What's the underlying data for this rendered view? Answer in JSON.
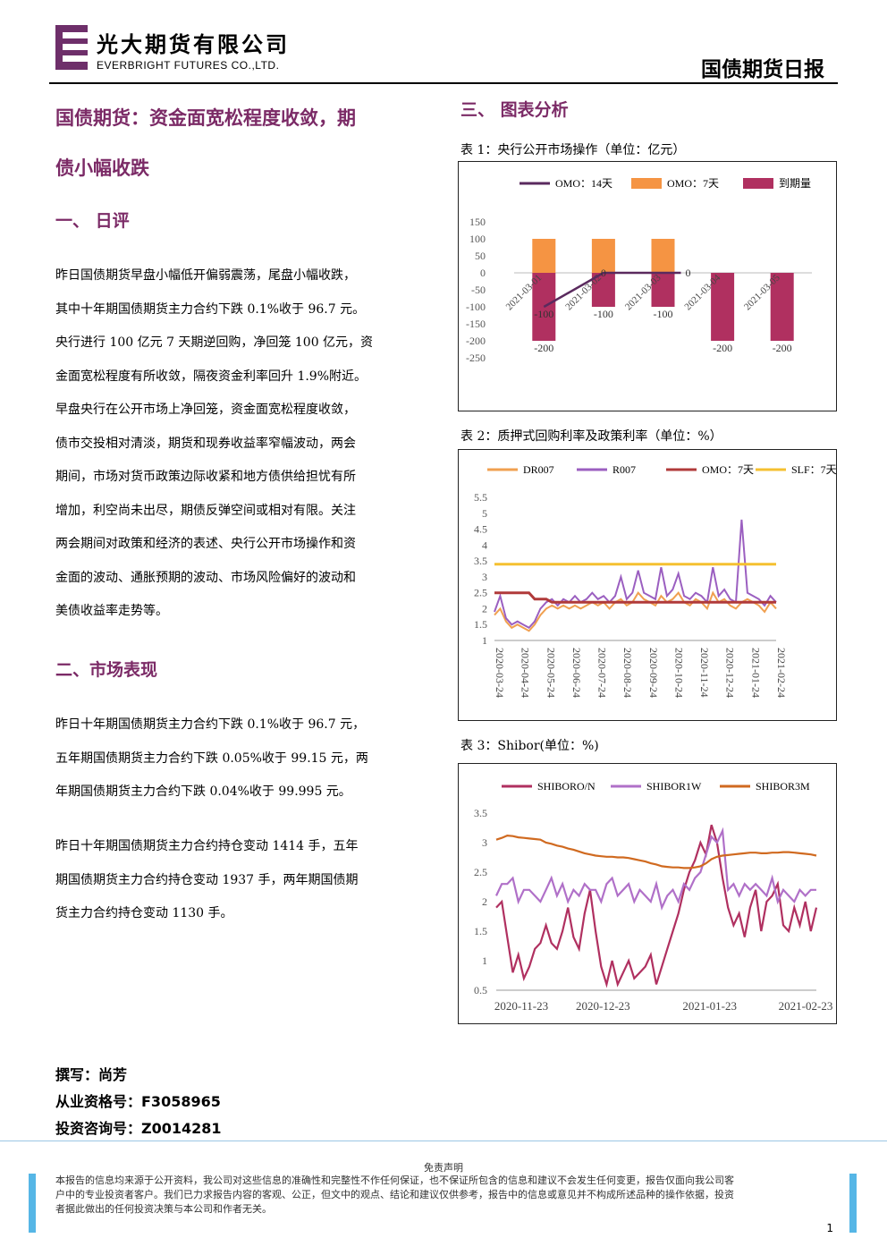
{
  "header": {
    "company_cn": "光大期货有限公司",
    "company_en": "EVERBRIGHT FUTURES CO.,LTD.",
    "report_title": "国债期货日报",
    "logo_color": "#7b2a66"
  },
  "main_title_line1": "国债期货：资金面宽松程度收敛，期",
  "main_title_line2": "债小幅收跌",
  "section1": {
    "heading": "一、  日评",
    "paragraph_lines": [
      "昨日国债期货早盘小幅低开偏弱震荡，尾盘小幅收跌，",
      "其中十年期国债期货主力合约下跌 0.1%收于 96.7 元。",
      "央行进行 100 亿元 7 天期逆回购，净回笼 100 亿元，资",
      "金面宽松程度有所收敛，隔夜资金利率回升 1.9%附近。",
      "早盘央行在公开市场上净回笼，资金面宽松程度收敛，",
      "债市交投相对清淡，期货和现券收益率窄幅波动，两会",
      "期间，市场对货币政策边际收紧和地方债供给担忧有所",
      "增加，利空尚未出尽，期债反弹空间或相对有限。关注",
      "两会期间对政策和经济的表述、央行公开市场操作和资",
      "金面的波动、通胀预期的波动、市场风险偏好的波动和",
      "美债收益率走势等。"
    ]
  },
  "section2": {
    "heading": "二、市场表现",
    "para1_lines": [
      "昨日十年期国债期货主力合约下跌 0.1%收于 96.7 元，",
      "五年期国债期货主力合约下跌 0.05%收于 99.15 元，两",
      "年期国债期货主力合约下跌 0.04%收于 99.995 元。"
    ],
    "para2_lines": [
      "昨日十年期国债期货主力合约持仓变动 1414 手，五年",
      "期国债期货主力合约持仓变动 1937 手，两年期国债期",
      "货主力合约持仓变动 1130 手。"
    ]
  },
  "section3": {
    "heading": "三、  图表分析"
  },
  "author": {
    "writer": "撰写：尚芳",
    "qualification": "从业资格号：F3058965",
    "consulting": "投资咨询号：Z0014281"
  },
  "footer": {
    "disclaimer_title": "免责声明",
    "disclaimer_lines": [
      "本报告的信息均来源于公开资料，我公司对这些信息的准确性和完整性不作任何保证，也不保证所包含的信息和建议不会发生任何变更，报告仅面向我公司客",
      "户中的专业投资者客户。我们已力求报告内容的客观、公正，但文中的观点、结论和建议仅供参考，报告中的信息或意见并不构成所述品种的操作依据，投资",
      "者据此做出的任何投资决策与本公司和作者无关。"
    ],
    "page_number": "1"
  },
  "chart_data": [
    {
      "caption": "表 1：央行公开市场操作（单位：亿元）",
      "type": "bar",
      "categories": [
        "2021-03-01",
        "2021-03-02",
        "2021-03-03",
        "2021-03-04",
        "2021-03-05"
      ],
      "series": [
        {
          "name": "OMO：14天",
          "kind": "line",
          "color": "#5a2a5e",
          "values": [
            -100,
            0,
            0,
            null,
            null
          ]
        },
        {
          "name": "OMO：7天",
          "kind": "bar",
          "color": "#f59443",
          "values": [
            100,
            100,
            100,
            null,
            null
          ]
        },
        {
          "name": "到期量",
          "kind": "bar",
          "color": "#b03060",
          "values": [
            -200,
            -100,
            -100,
            -200,
            -200
          ]
        }
      ],
      "data_labels": [
        "-200",
        "-100",
        "0",
        "-100",
        "0",
        "-100",
        "-200",
        "-200"
      ],
      "yticks": [
        "150",
        "100",
        "50",
        "0",
        "-50",
        "-100",
        "-150",
        "-200",
        "-250"
      ],
      "ylim": [
        -250,
        150
      ],
      "legend": "top"
    },
    {
      "caption": "表 2：质押式回购利率及政策利率（单位：%）",
      "type": "line",
      "xticks": [
        "2020-03-24",
        "2020-04-24",
        "2020-05-24",
        "2020-06-24",
        "2020-07-24",
        "2020-08-24",
        "2020-09-24",
        "2020-10-24",
        "2020-11-24",
        "2020-12-24",
        "2021-01-24",
        "2021-02-24"
      ],
      "yticks": [
        "5.5",
        "5",
        "4.5",
        "4",
        "3.5",
        "3",
        "2.5",
        "2",
        "1.5",
        "1"
      ],
      "ylim": [
        1,
        5.5
      ],
      "series": [
        {
          "name": "DR007",
          "color": "#f0a050",
          "values": [
            1.8,
            2.0,
            1.6,
            1.4,
            1.5,
            1.4,
            1.3,
            1.5,
            1.8,
            2.0,
            2.1,
            2.0,
            2.1,
            2.0,
            2.1,
            2.0,
            2.1,
            2.2,
            2.1,
            2.2,
            2.0,
            2.2,
            2.3,
            2.1,
            2.2,
            2.5,
            2.3,
            2.2,
            2.1,
            2.4,
            2.2,
            2.3,
            2.5,
            2.2,
            2.1,
            2.3,
            2.2,
            2.0,
            2.5,
            2.2,
            2.3,
            2.1,
            2.0,
            2.2,
            2.3,
            2.2,
            2.1,
            1.9,
            2.2,
            2.0
          ]
        },
        {
          "name": "R007",
          "color": "#9b5fc0",
          "values": [
            1.9,
            2.4,
            1.7,
            1.5,
            1.6,
            1.5,
            1.4,
            1.6,
            2.0,
            2.2,
            2.3,
            2.1,
            2.3,
            2.2,
            2.4,
            2.2,
            2.3,
            2.5,
            2.3,
            2.4,
            2.2,
            2.4,
            3.0,
            2.3,
            2.5,
            3.2,
            2.5,
            2.4,
            2.3,
            3.3,
            2.4,
            2.6,
            3.1,
            2.4,
            2.3,
            2.5,
            2.4,
            2.2,
            3.3,
            2.4,
            2.6,
            2.3,
            2.2,
            4.8,
            2.5,
            2.4,
            2.3,
            2.1,
            2.4,
            2.2
          ]
        },
        {
          "name": "OMO：7天",
          "color": "#b03a3a",
          "values": [
            2.5,
            2.5,
            2.5,
            2.5,
            2.5,
            2.5,
            2.5,
            2.3,
            2.3,
            2.3,
            2.2,
            2.2,
            2.2,
            2.2,
            2.2,
            2.2,
            2.2,
            2.2,
            2.2,
            2.2,
            2.2,
            2.2,
            2.2,
            2.2,
            2.2,
            2.2,
            2.2,
            2.2,
            2.2,
            2.2,
            2.2,
            2.2,
            2.2,
            2.2,
            2.2,
            2.2,
            2.2,
            2.2,
            2.2,
            2.2,
            2.2,
            2.2,
            2.2,
            2.2,
            2.2,
            2.2,
            2.2,
            2.2,
            2.2,
            2.2
          ]
        },
        {
          "name": "SLF：7天",
          "color": "#f5c030",
          "values": [
            3.4,
            3.4,
            3.4,
            3.4,
            3.4,
            3.4,
            3.4,
            3.4,
            3.4,
            3.4,
            3.4,
            3.4,
            3.4,
            3.4,
            3.4,
            3.4,
            3.4,
            3.4,
            3.4,
            3.4,
            3.4,
            3.4,
            3.4,
            3.4,
            3.4,
            3.4,
            3.4,
            3.4,
            3.4,
            3.4,
            3.4,
            3.4,
            3.4,
            3.4,
            3.4,
            3.4,
            3.4,
            3.4,
            3.4,
            3.4,
            3.4,
            3.4,
            3.4,
            3.4,
            3.4,
            3.4,
            3.4,
            3.4,
            3.4,
            3.4
          ]
        }
      ],
      "legend": "top"
    },
    {
      "caption": "表 3：Shibor(单位：%)",
      "type": "line",
      "xticks": [
        "2020-11-23",
        "2020-12-23",
        "2021-01-23",
        "2021-02-23"
      ],
      "yticks": [
        "3.5",
        "3",
        "2.5",
        "2",
        "1.5",
        "1",
        "0.5"
      ],
      "ylim": [
        0.5,
        3.5
      ],
      "series": [
        {
          "name": "SHIBORO/N",
          "color": "#b03060",
          "values": [
            1.9,
            2.0,
            1.4,
            0.8,
            1.1,
            0.7,
            0.9,
            1.2,
            1.3,
            1.6,
            1.3,
            1.2,
            1.5,
            1.9,
            1.4,
            1.2,
            1.8,
            2.2,
            1.5,
            0.9,
            0.6,
            1.0,
            0.6,
            0.8,
            1.0,
            0.7,
            0.8,
            0.9,
            1.1,
            0.6,
            0.9,
            1.2,
            1.5,
            1.8,
            2.2,
            2.5,
            2.7,
            3.0,
            2.8,
            3.3,
            3.0,
            2.4,
            1.9,
            1.6,
            1.8,
            1.4,
            1.9,
            2.2,
            1.5,
            2.0,
            2.1,
            2.3,
            1.6,
            1.5,
            1.9,
            1.6,
            2.0,
            1.5,
            1.9
          ]
        },
        {
          "name": "SHIBOR1W",
          "color": "#b070c8",
          "values": [
            2.1,
            2.3,
            2.3,
            2.4,
            2.0,
            2.2,
            2.2,
            2.1,
            2.0,
            2.2,
            2.4,
            2.1,
            2.3,
            2.0,
            2.2,
            2.1,
            2.3,
            2.2,
            2.2,
            2.0,
            2.3,
            2.4,
            2.1,
            2.2,
            2.3,
            2.0,
            2.2,
            2.1,
            2.0,
            2.3,
            1.9,
            2.1,
            2.2,
            2.0,
            2.3,
            2.2,
            2.4,
            2.5,
            2.8,
            3.1,
            3.0,
            3.2,
            2.2,
            2.3,
            2.1,
            2.3,
            2.2,
            2.3,
            2.2,
            2.1,
            2.4,
            2.0,
            2.2,
            2.1,
            2.0,
            2.2,
            2.1,
            2.2,
            2.2
          ]
        },
        {
          "name": "SHIBOR3M",
          "color": "#d06a20",
          "values": [
            3.05,
            3.08,
            3.12,
            3.11,
            3.09,
            3.08,
            3.07,
            3.06,
            3.05,
            3.0,
            2.98,
            2.95,
            2.93,
            2.9,
            2.88,
            2.85,
            2.82,
            2.8,
            2.78,
            2.77,
            2.76,
            2.76,
            2.75,
            2.75,
            2.74,
            2.72,
            2.7,
            2.68,
            2.65,
            2.63,
            2.6,
            2.59,
            2.58,
            2.58,
            2.57,
            2.57,
            2.58,
            2.6,
            2.65,
            2.72,
            2.76,
            2.78,
            2.79,
            2.8,
            2.81,
            2.82,
            2.83,
            2.83,
            2.82,
            2.82,
            2.83,
            2.83,
            2.84,
            2.84,
            2.83,
            2.82,
            2.81,
            2.8,
            2.78
          ]
        }
      ],
      "legend": "top"
    }
  ]
}
